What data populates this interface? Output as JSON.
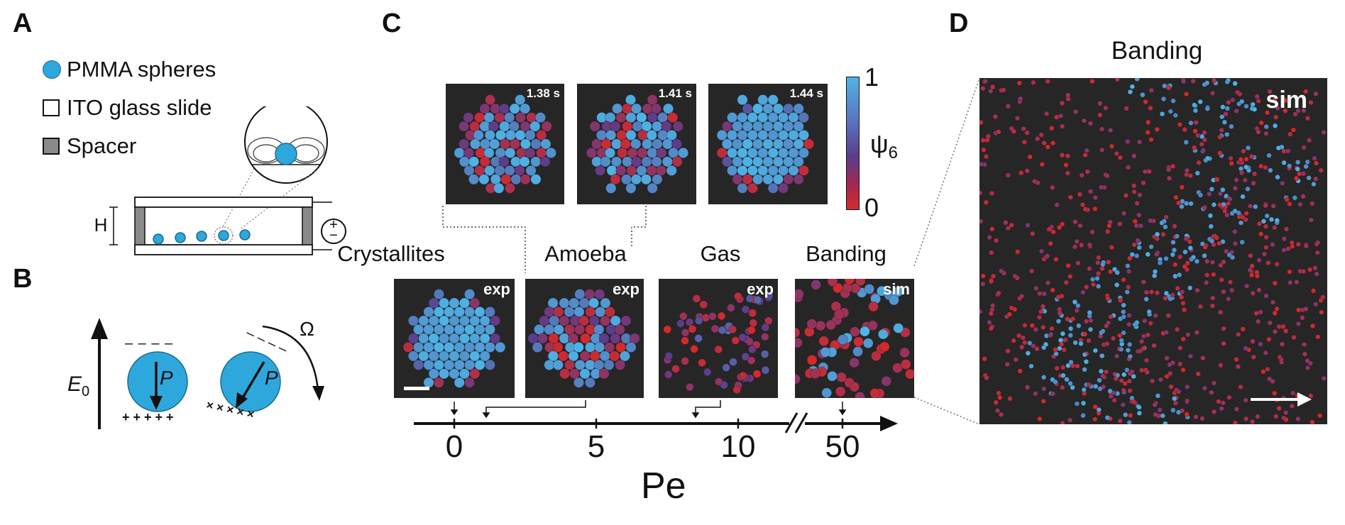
{
  "panels": {
    "a": "A",
    "b": "B",
    "c": "C",
    "d": "D"
  },
  "legend": {
    "spheres": "PMMA spheres",
    "ito": "ITO glass slide",
    "spacer": "Spacer"
  },
  "panel_a": {
    "height_label": "H",
    "plus": "+",
    "minus": "−"
  },
  "panel_b": {
    "field_label": "E",
    "field_subscript": "0",
    "dipole_label": "P",
    "rotation_label": "Ω",
    "charge_top": "– – – –",
    "charge_bottom": "+ + + + +",
    "charge_rot_top": "– – – –",
    "charge_rot_bottom": "× × × × ×"
  },
  "panel_c": {
    "timestamps": [
      "1.38 s",
      "1.41 s",
      "1.44 s"
    ],
    "colorbar": {
      "max": "1",
      "min": "0",
      "label": "ψ",
      "label_sub": "6"
    },
    "phases": [
      {
        "label": "Crystallites",
        "tag": "exp"
      },
      {
        "label": "Amoeba",
        "tag": "exp"
      },
      {
        "label": "Gas",
        "tag": "exp"
      },
      {
        "label": "Banding",
        "tag": "sim"
      }
    ],
    "axis": {
      "ticks": [
        "0",
        "5",
        "10",
        "50"
      ],
      "break": "//",
      "xlabel": "Pe"
    }
  },
  "panel_d": {
    "title": "Banding",
    "tag": "sim"
  },
  "colors": {
    "sphere_blue": "#2ea8dc",
    "spacer_grey": "#8a8a8a",
    "image_bg": "#262626",
    "psi_high": "#4fb4e6",
    "psi_mid": "#5a3d8c",
    "psi_low": "#d42a2a"
  }
}
